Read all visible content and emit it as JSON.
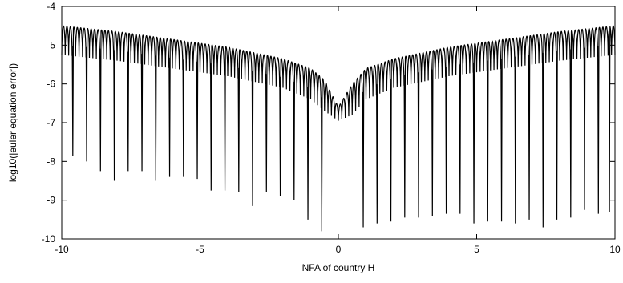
{
  "chart_data": {
    "type": "line",
    "title": "",
    "xlabel": "NFA of country H",
    "ylabel": "log10(|euler equation error|)",
    "xlim": [
      -10,
      10
    ],
    "ylim": [
      -10,
      -4
    ],
    "xticks": [
      -10,
      -5,
      0,
      5,
      10
    ],
    "yticks": [
      -10,
      -9,
      -8,
      -7,
      -6,
      -5,
      -4
    ],
    "xtick_labels": [
      "-10",
      "-5",
      "0",
      "5",
      "10"
    ],
    "ytick_labels": [
      "-10",
      "-9",
      "-8",
      "-7",
      "-6",
      "-5",
      "-4"
    ],
    "grid": false,
    "legend": "none",
    "line_color": "#000000",
    "series": [
      {
        "description_points": "envelope: approx -4.5 at x=-10, rising/falling to approx -6.9 near x=0, back to -4.5 at x=10; oscillating with deep spikes",
        "envelope_x": [
          -10,
          -8,
          -6,
          -4,
          -2,
          -1,
          -0.5,
          0,
          0.5,
          1,
          2,
          4,
          6,
          8,
          10
        ],
        "envelope_top": [
          -4.5,
          -4.65,
          -4.85,
          -5.05,
          -5.35,
          -5.6,
          -5.9,
          -6.6,
          -6.0,
          -5.6,
          -5.35,
          -5.05,
          -4.85,
          -4.65,
          -4.5
        ],
        "envelope_trough": [
          -5.25,
          -5.4,
          -5.6,
          -5.8,
          -6.1,
          -6.4,
          -6.7,
          -6.95,
          -6.8,
          -6.4,
          -6.1,
          -5.8,
          -5.6,
          -5.4,
          -5.25
        ],
        "spikes_x": [
          -9.6,
          -9.1,
          -8.6,
          -8.1,
          -7.6,
          -7.1,
          -6.6,
          -6.1,
          -5.6,
          -5.1,
          -4.6,
          -4.1,
          -3.6,
          -3.1,
          -2.6,
          -2.1,
          -1.6,
          -1.1,
          -0.6,
          0.9,
          1.4,
          1.9,
          2.4,
          2.9,
          3.4,
          3.9,
          4.4,
          4.9,
          5.4,
          5.9,
          6.4,
          6.9,
          7.4,
          7.9,
          8.4,
          8.9,
          9.4,
          9.8
        ],
        "spikes_y": [
          -7.85,
          -8.0,
          -8.25,
          -8.5,
          -8.25,
          -8.25,
          -8.5,
          -8.4,
          -8.4,
          -8.45,
          -8.75,
          -8.75,
          -8.8,
          -9.15,
          -8.8,
          -8.9,
          -9.0,
          -9.5,
          -9.8,
          -9.7,
          -9.6,
          -9.55,
          -9.45,
          -9.45,
          -9.4,
          -9.35,
          -9.35,
          -9.6,
          -9.55,
          -9.55,
          -9.6,
          -9.5,
          -9.7,
          -9.5,
          -9.45,
          -9.25,
          -9.35,
          -9.3
        ]
      }
    ]
  }
}
